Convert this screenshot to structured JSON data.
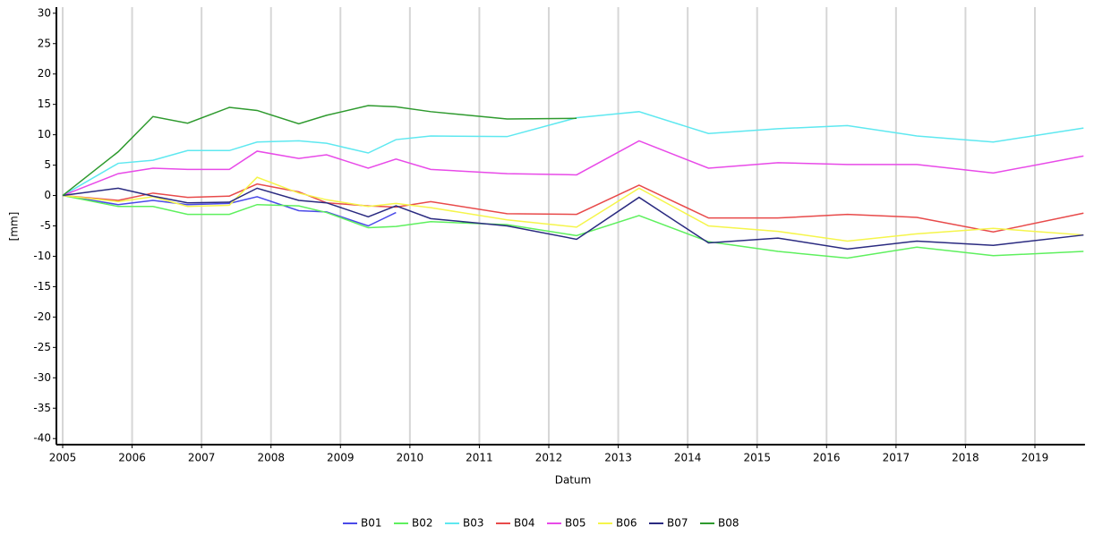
{
  "chart_data": {
    "type": "line",
    "x_label": "Datum",
    "y_label": "[mm]",
    "x": [
      2005.0,
      2005.8,
      2006.3,
      2006.8,
      2007.4,
      2007.8,
      2008.4,
      2008.8,
      2009.4,
      2009.8,
      2010.3,
      2011.4,
      2012.4,
      2013.3,
      2014.3,
      2015.3,
      2016.3,
      2017.3,
      2018.4,
      2019.7
    ],
    "xlim": [
      2005,
      2019.72
    ],
    "xticks": [
      2005,
      2006,
      2007,
      2008,
      2009,
      2010,
      2011,
      2012,
      2013,
      2014,
      2015,
      2016,
      2017,
      2018,
      2019
    ],
    "ylim": [
      -41,
      31
    ],
    "yticks": [
      -40,
      -35,
      -30,
      -25,
      -20,
      -15,
      -10,
      -5,
      0,
      5,
      10,
      15,
      20,
      25,
      30
    ],
    "grid": true,
    "legend": "bottom",
    "series": [
      {
        "name": "B01",
        "color": "#4a4ae8",
        "values": [
          0,
          -1.5,
          -0.8,
          -1.5,
          -1.3,
          -0.2,
          -2.5,
          -2.7,
          -5,
          -2.8,
          null,
          null,
          null,
          null,
          null,
          null,
          null,
          null,
          null,
          null
        ]
      },
      {
        "name": "B02",
        "color": "#5ef05e",
        "values": [
          0,
          -1.8,
          -1.8,
          -3.1,
          -3.1,
          -1.5,
          -1.7,
          -2.8,
          -5.3,
          -5.1,
          -4.3,
          -4.8,
          -6.6,
          -3.3,
          -7.6,
          -9.2,
          -10.3,
          -8.5,
          -9.9,
          -9.2
        ]
      },
      {
        "name": "B03",
        "color": "#5ee8f0",
        "values": [
          0,
          5.3,
          5.8,
          7.4,
          7.4,
          8.8,
          9,
          8.6,
          7,
          9.2,
          9.8,
          9.7,
          12.8,
          13.8,
          10.2,
          11,
          11.5,
          9.8,
          8.8,
          11.1
        ]
      },
      {
        "name": "B04",
        "color": "#e84a4a",
        "values": [
          0,
          -0.8,
          0.4,
          -0.3,
          -0.1,
          1.9,
          0.6,
          -1.2,
          -1.7,
          -1.9,
          -1,
          -3,
          -3.1,
          1.7,
          -3.7,
          -3.7,
          -3.1,
          -3.6,
          -6,
          -2.9
        ]
      },
      {
        "name": "B05",
        "color": "#e84ae8",
        "values": [
          0,
          3.6,
          4.5,
          4.3,
          4.3,
          7.3,
          6.1,
          6.7,
          4.5,
          6,
          4.3,
          3.6,
          3.4,
          9,
          4.5,
          5.4,
          5.1,
          5.1,
          3.7,
          6.5
        ]
      },
      {
        "name": "B06",
        "color": "#f5f54a",
        "values": [
          0,
          -1,
          -0.2,
          -1.8,
          -1.6,
          3,
          0.4,
          -0.7,
          -1.8,
          -1.3,
          -2,
          -4,
          -5.2,
          1.2,
          -5,
          -5.9,
          -7.5,
          -6.3,
          -5.4,
          -6.5
        ]
      },
      {
        "name": "B07",
        "color": "#2a2a80",
        "values": [
          0,
          1.2,
          -0.1,
          -1.2,
          -1.1,
          1.2,
          -0.8,
          -1.2,
          -3.5,
          -1.7,
          -3.8,
          -5,
          -7.2,
          -0.3,
          -7.8,
          -7,
          -8.8,
          -7.5,
          -8.2,
          -6.5
        ]
      },
      {
        "name": "B08",
        "color": "#2e9a2e",
        "values": [
          0,
          7.2,
          13,
          11.9,
          14.5,
          14,
          11.8,
          13.2,
          14.8,
          14.6,
          13.8,
          12.6,
          12.7,
          null,
          null,
          null,
          null,
          null,
          null,
          null
        ]
      }
    ]
  }
}
